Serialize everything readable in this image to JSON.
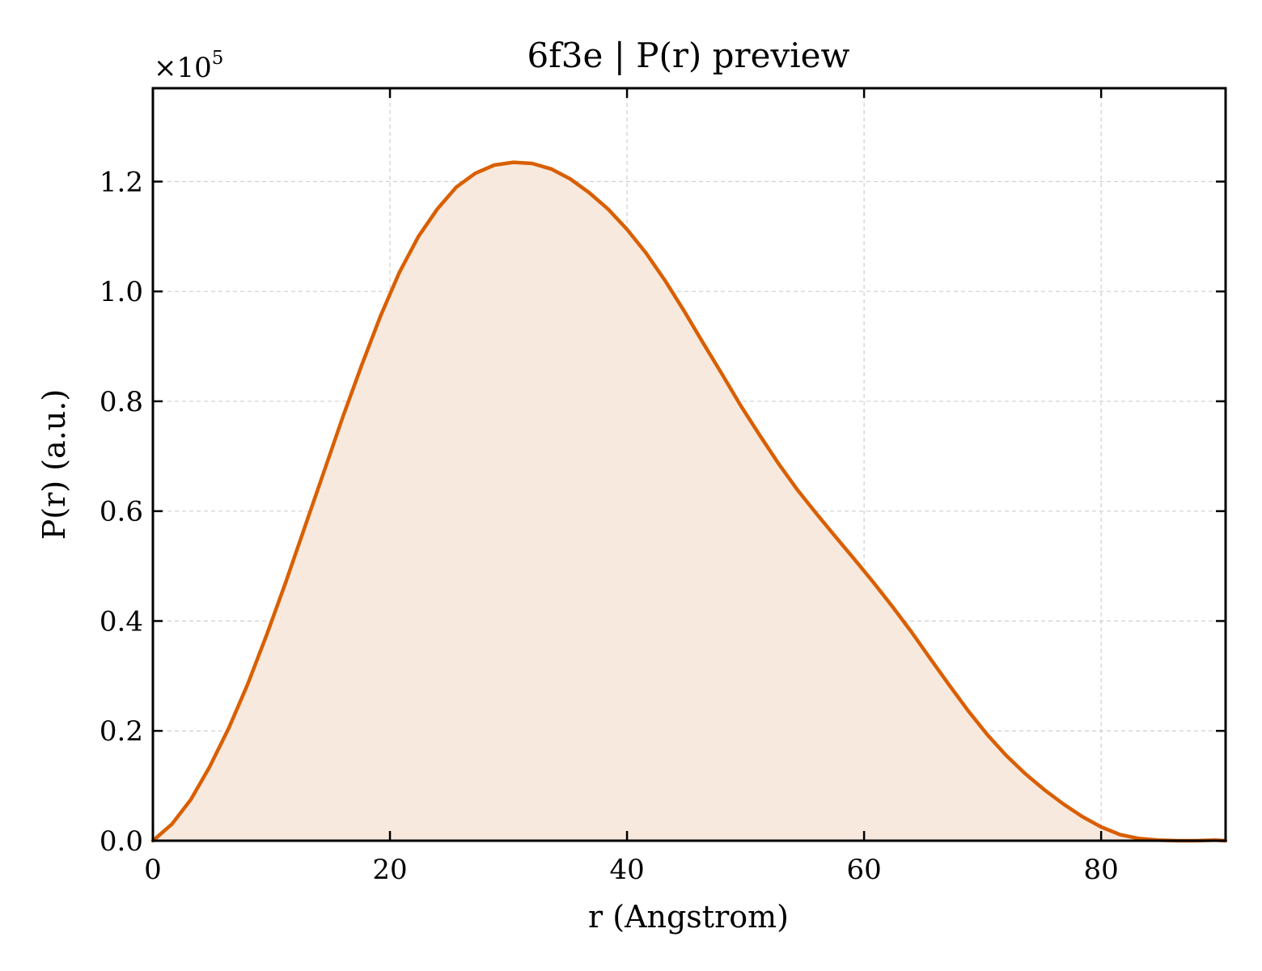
{
  "chart_data": {
    "type": "area",
    "title": "6f3e | P(r) preview",
    "xlabel": "r (Angstrom)",
    "ylabel": "P(r) (a.u.)",
    "y_multiplier_label": "×10",
    "y_multiplier_exponent": "5",
    "xlim": [
      0,
      90.5
    ],
    "ylim": [
      0,
      1.37
    ],
    "y_scale_factor": 100000,
    "x_ticks": [
      0,
      20,
      40,
      60,
      80
    ],
    "x_tick_labels": [
      "0",
      "20",
      "40",
      "60",
      "80"
    ],
    "y_ticks": [
      0,
      0.2,
      0.4,
      0.6,
      0.8,
      1.0,
      1.2
    ],
    "y_tick_labels": [
      "0.0",
      "0.2",
      "0.4",
      "0.6",
      "0.8",
      "1.0",
      "1.2"
    ],
    "grid": true,
    "line_color": "#d95f02",
    "fill_color": "#f8e9de",
    "series": [
      {
        "x": [
          0,
          1.6,
          3.2,
          4.8,
          6.4,
          8.0,
          9.6,
          11.2,
          12.8,
          14.4,
          16.0,
          17.6,
          19.2,
          20.8,
          22.4,
          24.0,
          25.6,
          27.2,
          28.8,
          30.4,
          32.0,
          33.6,
          35.2,
          36.8,
          38.4,
          40.0,
          41.6,
          43.2,
          44.8,
          46.4,
          48.0,
          49.6,
          51.2,
          52.8,
          54.4,
          56.0,
          57.6,
          59.2,
          60.8,
          62.4,
          64.0,
          65.6,
          67.2,
          68.8,
          70.4,
          72.0,
          73.6,
          75.2,
          76.8,
          78.4,
          80.0,
          81.6,
          83.2,
          84.8,
          86.4,
          88.0,
          89.6,
          90.5
        ],
        "y": [
          0.0,
          0.03,
          0.075,
          0.135,
          0.205,
          0.285,
          0.375,
          0.47,
          0.57,
          0.67,
          0.77,
          0.865,
          0.955,
          1.035,
          1.1,
          1.15,
          1.19,
          1.215,
          1.23,
          1.235,
          1.233,
          1.223,
          1.205,
          1.18,
          1.15,
          1.113,
          1.07,
          1.02,
          0.965,
          0.907,
          0.85,
          0.792,
          0.738,
          0.686,
          0.638,
          0.595,
          0.553,
          0.512,
          0.47,
          0.426,
          0.38,
          0.331,
          0.283,
          0.236,
          0.193,
          0.155,
          0.122,
          0.093,
          0.067,
          0.044,
          0.025,
          0.011,
          0.004,
          0.001,
          0.0,
          0.0,
          0.001,
          0.0
        ]
      }
    ]
  }
}
